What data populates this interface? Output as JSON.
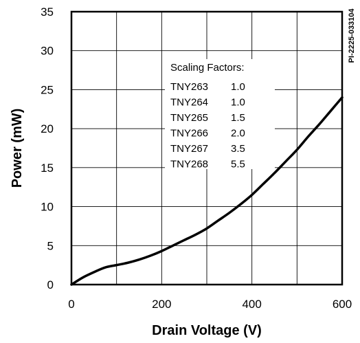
{
  "chart_data": {
    "type": "line",
    "xlabel": "Drain Voltage (V)",
    "ylabel": "Power (mW)",
    "xlim": [
      0,
      600
    ],
    "ylim": [
      0,
      35
    ],
    "x_ticks": [
      0,
      200,
      400,
      600
    ],
    "y_ticks": [
      0,
      5,
      10,
      15,
      20,
      25,
      30,
      35
    ],
    "x_grid": [
      0,
      100,
      200,
      300,
      400,
      500,
      600
    ],
    "grid": true,
    "series": [
      {
        "x": [
          0,
          25,
          50,
          75,
          100,
          125,
          150,
          175,
          200,
          225,
          250,
          275,
          300,
          325,
          350,
          375,
          400,
          425,
          450,
          475,
          500,
          525,
          550,
          575,
          600
        ],
        "y": [
          0,
          0.9,
          1.6,
          2.2,
          2.5,
          2.8,
          3.2,
          3.7,
          4.3,
          5.0,
          5.7,
          6.4,
          7.2,
          8.2,
          9.2,
          10.3,
          11.5,
          12.9,
          14.3,
          15.8,
          17.3,
          19.0,
          20.6,
          22.3,
          24.0
        ]
      }
    ],
    "annotation": {
      "title": "Scaling Factors:",
      "rows": [
        {
          "part": "TNY263",
          "factor": "1.0"
        },
        {
          "part": "TNY264",
          "factor": "1.0"
        },
        {
          "part": "TNY265",
          "factor": "1.5"
        },
        {
          "part": "TNY266",
          "factor": "2.0"
        },
        {
          "part": "TNY267",
          "factor": "3.5"
        },
        {
          "part": "TNY268",
          "factor": "5.5"
        }
      ]
    },
    "figure_code": "PI-2225-033104"
  }
}
